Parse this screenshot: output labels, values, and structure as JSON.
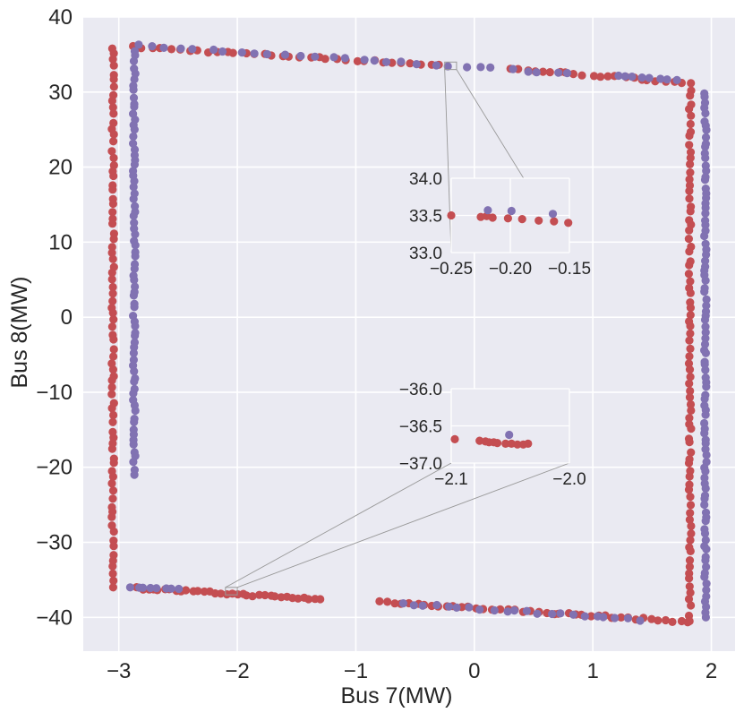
{
  "chart_data": {
    "type": "scatter",
    "title": "",
    "xlabel": "Bus 7(MW)",
    "ylabel": "Bus 8(MW)",
    "xlim": [
      -3.3,
      2.2
    ],
    "ylim": [
      -44.5,
      40
    ],
    "xticks": [
      -3,
      -2,
      -1,
      0,
      1,
      2
    ],
    "yticks": [
      -40,
      -30,
      -20,
      -10,
      0,
      10,
      20,
      30,
      40
    ],
    "xtick_labels": [
      "−3",
      "−2",
      "−1",
      "0",
      "1",
      "2"
    ],
    "ytick_labels": [
      "−40",
      "−30",
      "−20",
      "−10",
      "0",
      "10",
      "20",
      "30",
      "40"
    ],
    "grid": true,
    "colors": {
      "background": "#EAEAF2",
      "grid": "#FFFFFF",
      "red": "#C44E52",
      "purple": "#8172B2",
      "connector": "#999999"
    },
    "series": [
      {
        "name": "red",
        "color": "#C44E52",
        "sides": [
          {
            "from": [
              -2.88,
              36.0
            ],
            "to": [
              -0.3,
              33.6
            ],
            "count": 34
          },
          {
            "from": [
              0.3,
              33.1
            ],
            "to": [
              1.75,
              31.3
            ],
            "count": 22
          },
          {
            "from": [
              -3.05,
              36.0
            ],
            "to": [
              -3.05,
              -36.0
            ],
            "count": 80
          },
          {
            "from": [
              1.82,
              31.3
            ],
            "to": [
              1.82,
              -40.5
            ],
            "count": 80
          },
          {
            "from": [
              -2.85,
              -36.1
            ],
            "to": [
              -1.3,
              -37.6
            ],
            "count": 34
          },
          {
            "from": [
              -0.8,
              -37.9
            ],
            "to": [
              1.8,
              -40.6
            ],
            "count": 42
          }
        ]
      },
      {
        "name": "purple",
        "color": "#8172B2",
        "sides": [
          {
            "from": [
              -2.85,
              36.2
            ],
            "to": [
              0.8,
              32.5
            ],
            "count": 30
          },
          {
            "from": [
              1.2,
              32.2
            ],
            "to": [
              1.7,
              31.6
            ],
            "count": 8
          },
          {
            "from": [
              -2.87,
              35.5
            ],
            "to": [
              -2.87,
              -21.0
            ],
            "count": 75
          },
          {
            "from": [
              1.95,
              30.0
            ],
            "to": [
              1.95,
              -40.0
            ],
            "count": 95
          },
          {
            "from": [
              -2.9,
              -36.0
            ],
            "to": [
              -2.5,
              -36.2
            ],
            "count": 8
          },
          {
            "from": [
              -0.6,
              -38.2
            ],
            "to": [
              1.4,
              -40.3
            ],
            "count": 22
          }
        ]
      }
    ],
    "insets": [
      {
        "name": "inset-top",
        "xlim": [
          -0.25,
          -0.15
        ],
        "ylim": [
          33.0,
          34.0
        ],
        "xticks": [
          -0.25,
          -0.2,
          -0.15
        ],
        "yticks": [
          33.0,
          33.5,
          34.0
        ],
        "xtick_labels": [
          "−0.25",
          "−0.20",
          "−0.15"
        ],
        "ytick_labels": [
          "33.0",
          "33.5",
          "34.0"
        ],
        "points": [
          {
            "x": -0.25,
            "y": 33.5,
            "series": "red"
          },
          {
            "x": -0.225,
            "y": 33.48,
            "series": "red"
          },
          {
            "x": -0.22,
            "y": 33.49,
            "series": "red"
          },
          {
            "x": -0.215,
            "y": 33.47,
            "series": "red"
          },
          {
            "x": -0.219,
            "y": 33.57,
            "series": "purple"
          },
          {
            "x": -0.202,
            "y": 33.46,
            "series": "red"
          },
          {
            "x": -0.19,
            "y": 33.45,
            "series": "red"
          },
          {
            "x": -0.199,
            "y": 33.56,
            "series": "purple"
          },
          {
            "x": -0.176,
            "y": 33.43,
            "series": "red"
          },
          {
            "x": -0.163,
            "y": 33.42,
            "series": "red"
          },
          {
            "x": -0.164,
            "y": 33.52,
            "series": "purple"
          },
          {
            "x": -0.151,
            "y": 33.4,
            "series": "red"
          }
        ]
      },
      {
        "name": "inset-bottom",
        "xlim": [
          -2.1,
          -2.0
        ],
        "ylim": [
          -37.0,
          -36.0
        ],
        "xticks": [
          -2.1,
          -2.0
        ],
        "yticks": [
          -37.0,
          -36.5,
          -36.0
        ],
        "xtick_labels": [
          "−2.1",
          "−2.0"
        ],
        "ytick_labels": [
          "−37.0",
          "−36.5",
          "−36.0"
        ],
        "points": [
          {
            "x": -2.097,
            "y": -36.68,
            "series": "red"
          },
          {
            "x": -2.076,
            "y": -36.7,
            "series": "red"
          },
          {
            "x": -2.071,
            "y": -36.71,
            "series": "red"
          },
          {
            "x": -2.068,
            "y": -36.72,
            "series": "red"
          },
          {
            "x": -2.064,
            "y": -36.72,
            "series": "red"
          },
          {
            "x": -2.061,
            "y": -36.73,
            "series": "red"
          },
          {
            "x": -2.054,
            "y": -36.74,
            "series": "red"
          },
          {
            "x": -2.049,
            "y": -36.74,
            "series": "red"
          },
          {
            "x": -2.044,
            "y": -36.75,
            "series": "red"
          },
          {
            "x": -2.039,
            "y": -36.75,
            "series": "red"
          },
          {
            "x": -2.035,
            "y": -36.74,
            "series": "red"
          },
          {
            "x": -2.051,
            "y": -36.62,
            "series": "purple"
          }
        ]
      }
    ]
  }
}
